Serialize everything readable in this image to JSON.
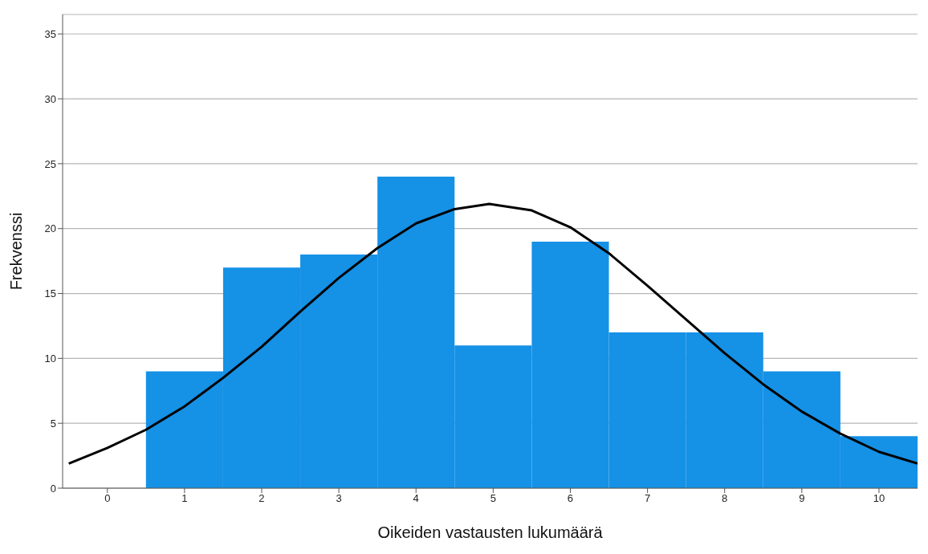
{
  "chart_data": {
    "type": "histogram",
    "xlabel": "Oikeiden vastausten lukumäärä",
    "ylabel": "Frekvenssi",
    "bins": [
      -0.5,
      0.5,
      1.5,
      2.5,
      3.5,
      4.5,
      5.5,
      6.5,
      7.5,
      8.5,
      9.5,
      10.5
    ],
    "values": [
      0,
      9,
      17,
      18,
      24,
      11,
      19,
      12,
      12,
      9,
      4
    ],
    "color": "#1591e6",
    "series": [
      {
        "type": "line",
        "color": "#000000",
        "x": [
          -0.5,
          0,
          0.5,
          1,
          1.5,
          2,
          2.5,
          3,
          3.5,
          4,
          4.5,
          4.95,
          5.5,
          6,
          6.5,
          7,
          7.5,
          8,
          8.5,
          9,
          9.5,
          10,
          10.5
        ],
        "values": [
          1.9,
          3.1,
          4.5,
          6.3,
          8.5,
          10.9,
          13.6,
          16.2,
          18.5,
          20.4,
          21.5,
          21.9,
          21.4,
          20.1,
          18.1,
          15.6,
          13.0,
          10.4,
          8.0,
          5.9,
          4.2,
          2.8,
          1.9
        ]
      }
    ],
    "xlim": [
      -0.58,
      10.5
    ],
    "xticks": [
      0,
      1,
      2,
      3,
      4,
      5,
      6,
      7,
      8,
      9,
      10
    ],
    "ylim": [
      0,
      36.5
    ],
    "yticks": [
      0,
      5,
      10,
      15,
      20,
      25,
      30,
      35
    ],
    "grid": "y"
  }
}
